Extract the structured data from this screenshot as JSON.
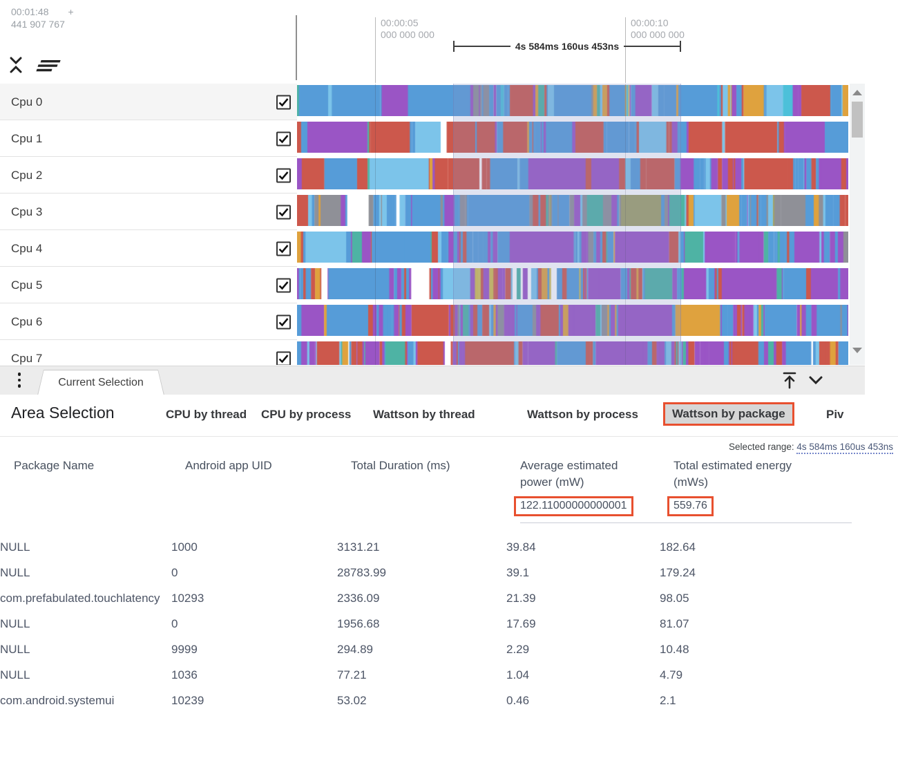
{
  "timeline": {
    "offset": {
      "time": "00:01:48",
      "plus": "+",
      "ns": "441 907 767"
    },
    "ticks": [
      {
        "time": "00:00:05",
        "ns": "000 000 000"
      },
      {
        "time": "00:00:10",
        "ns": "000 000 000"
      }
    ],
    "span_label": "4s 584ms 160us 453ns",
    "icons": {
      "collapse": "unfold-less-icon",
      "sort": "sort-icon"
    },
    "tracks": [
      {
        "name": "Cpu 0",
        "checked": true
      },
      {
        "name": "Cpu 1",
        "checked": true
      },
      {
        "name": "Cpu 2",
        "checked": true
      },
      {
        "name": "Cpu 3",
        "checked": true
      },
      {
        "name": "Cpu 4",
        "checked": true
      },
      {
        "name": "Cpu 5",
        "checked": true
      },
      {
        "name": "Cpu 6",
        "checked": true
      },
      {
        "name": "Cpu 7",
        "checked": true
      }
    ],
    "palette": {
      "blue": "#569cd8",
      "lblue": "#7cc4ea",
      "cyan": "#4cc0d9",
      "purple": "#9a55c5",
      "red": "#cc584c",
      "orange": "#dfa23e",
      "yellow": "#d1bd4e",
      "teal": "#4eb3a4",
      "gray": "#8f9097",
      "olive": "#a0a067",
      "white": "#ffffff"
    },
    "selection_overlay_color": "rgba(137,148,198,0.26)"
  },
  "drawer": {
    "tab_label": "Current Selection",
    "icons": {
      "menu": "kebab-menu-icon",
      "expand": "expand-to-top-icon",
      "collapse": "chevron-down-icon"
    }
  },
  "panel": {
    "title": "Area Selection",
    "tabs": [
      "CPU by thread",
      "CPU by process",
      "Wattson by thread",
      "Wattson by process",
      "Wattson by package",
      "Piv"
    ],
    "active_tab": "Wattson by package",
    "selected_range": {
      "label": "Selected range:",
      "value": "4s 584ms 160us 453ns"
    },
    "table": {
      "columns": [
        "Package Name",
        "Android app UID",
        "Total Duration (ms)",
        "Average estimated power (mW)",
        "Total estimated energy (mWs)"
      ],
      "summary": {
        "avg_power": "122.11000000000001",
        "total_energy": "559.76"
      },
      "rows": [
        {
          "package": "NULL",
          "uid": "1000",
          "duration": "3131.21",
          "power": "39.84",
          "energy": "182.64"
        },
        {
          "package": "NULL",
          "uid": "0",
          "duration": "28783.99",
          "power": "39.1",
          "energy": "179.24"
        },
        {
          "package": "com.prefabulated.touchlatency",
          "uid": "10293",
          "duration": "2336.09",
          "power": "21.39",
          "energy": "98.05"
        },
        {
          "package": "NULL",
          "uid": "0",
          "duration": "1956.68",
          "power": "17.69",
          "energy": "81.07"
        },
        {
          "package": "NULL",
          "uid": "9999",
          "duration": "294.89",
          "power": "2.29",
          "energy": "10.48"
        },
        {
          "package": "NULL",
          "uid": "1036",
          "duration": "77.21",
          "power": "1.04",
          "energy": "4.79"
        },
        {
          "package": "com.android.systemui",
          "uid": "10239",
          "duration": "53.02",
          "power": "0.46",
          "energy": "2.1"
        }
      ]
    },
    "highlight_color": "#e8502f"
  }
}
